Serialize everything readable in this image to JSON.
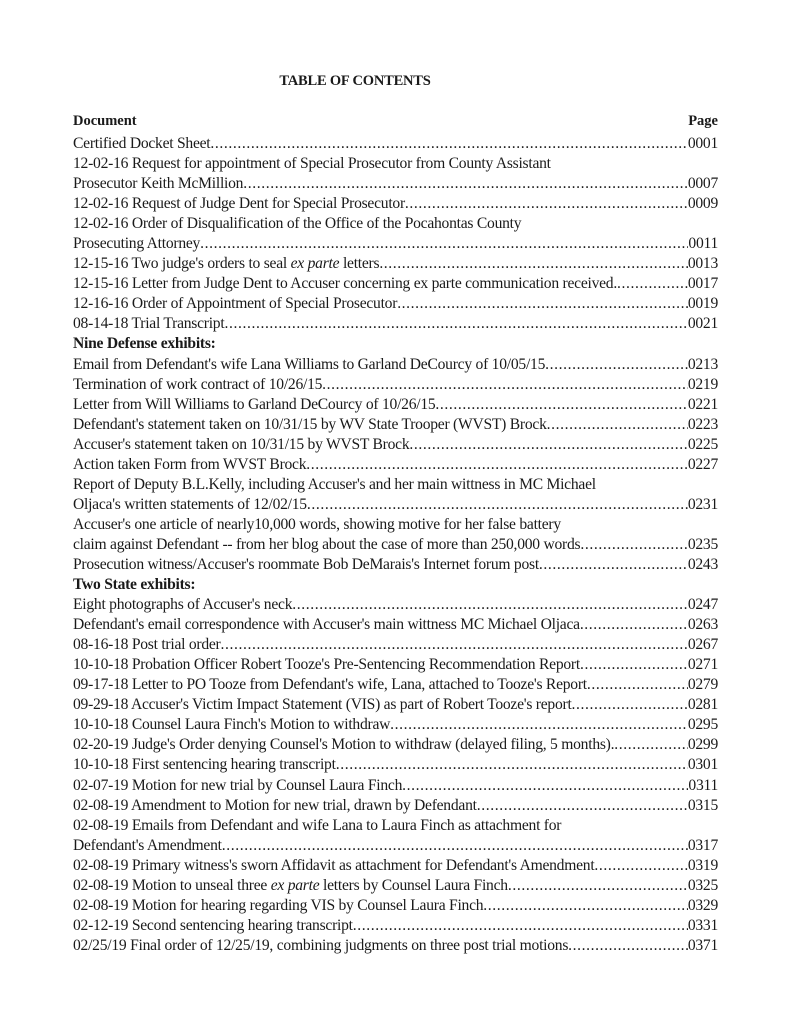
{
  "title": "TABLE OF CONTENTS",
  "header": {
    "document": "Document",
    "page": "Page"
  },
  "rows": [
    {
      "type": "entry",
      "lines": [
        "Certified Docket Sheet"
      ],
      "page": "0001"
    },
    {
      "type": "entry",
      "lines": [
        "12-02-16 Request for appointment of Special Prosecutor from County Assistant",
        "Prosecutor Keith McMillion"
      ],
      "page": "0007"
    },
    {
      "type": "entry",
      "lines": [
        "12-02-16 Request of Judge Dent for Special Prosecutor"
      ],
      "page": "0009"
    },
    {
      "type": "entry",
      "lines": [
        "12-02-16 Order of Disqualification of the Office of the Pocahontas County",
        "Prosecuting Attorney"
      ],
      "page": "0011"
    },
    {
      "type": "entry",
      "lines": [
        {
          "pre": "12-15-16  Two judge's orders to seal ",
          "em": "ex parte",
          "post": " letters"
        }
      ],
      "page": "0013"
    },
    {
      "type": "entry",
      "lines": [
        "12-15-16 Letter from Judge Dent to Accuser concerning ex parte communication received."
      ],
      "page": "0017"
    },
    {
      "type": "entry",
      "lines": [
        "12-16-16 Order of Appointment of Special Prosecutor"
      ],
      "page": "0019"
    },
    {
      "type": "entry",
      "lines": [
        "08-14-18 Trial Transcript"
      ],
      "page": "0021"
    },
    {
      "type": "heading",
      "text": "Nine Defense exhibits:"
    },
    {
      "type": "entry",
      "lines": [
        "Email from Defendant's wife Lana Williams to Garland DeCourcy of 10/05/15"
      ],
      "page": "0213"
    },
    {
      "type": "entry",
      "lines": [
        "Termination of work contract of 10/26/15"
      ],
      "page": "0219"
    },
    {
      "type": "entry",
      "lines": [
        "Letter from Will Williams to Garland DeCourcy of 10/26/15"
      ],
      "page": "0221"
    },
    {
      "type": "entry",
      "lines": [
        "Defendant's statement taken on 10/31/15 by WV State Trooper (WVST) Brock"
      ],
      "page": "0223"
    },
    {
      "type": "entry",
      "lines": [
        "Accuser's statement taken on 10/31/15 by WVST Brock"
      ],
      "page": "0225"
    },
    {
      "type": "entry",
      "lines": [
        "Action taken Form from WVST Brock"
      ],
      "page": "0227"
    },
    {
      "type": "entry",
      "lines": [
        "Report of Deputy B.L.Kelly, including Accuser's and her main wittness in MC Michael",
        "Oljaca's written statements of 12/02/15"
      ],
      "page": "0231"
    },
    {
      "type": "entry",
      "lines": [
        "Accuser's one article of nearly10,000 words, showing motive for her false battery",
        "claim against Defendant -- from her blog about the case of more than 250,000 words"
      ],
      "page": "0235"
    },
    {
      "type": "entry",
      "lines": [
        "Prosecution witness/Accuser's roommate Bob DeMarais's Internet forum post"
      ],
      "page": "0243"
    },
    {
      "type": "heading",
      "text": "Two State exhibits:"
    },
    {
      "type": "entry",
      "lines": [
        "Eight photographs of Accuser's neck"
      ],
      "page": "0247"
    },
    {
      "type": "entry",
      "lines": [
        "Defendant's email correspondence with Accuser's main wittness MC Michael Oljaca"
      ],
      "page": "0263"
    },
    {
      "type": "entry",
      "lines": [
        "08-16-18 Post trial order"
      ],
      "page": "0267"
    },
    {
      "type": "entry",
      "lines": [
        "10-10-18 Probation Officer Robert Tooze's Pre-Sentencing Recommendation Report"
      ],
      "page": "0271"
    },
    {
      "type": "entry",
      "lines": [
        "09-17-18 Letter to PO Tooze from Defendant's wife, Lana, attached to Tooze's Report"
      ],
      "page": "0279"
    },
    {
      "type": "entry",
      "lines": [
        "09-29-18 Accuser's Victim Impact Statement (VIS) as part of Robert Tooze's report"
      ],
      "page": "0281"
    },
    {
      "type": "entry",
      "lines": [
        "10-10-18 Counsel Laura Finch's Motion to withdraw"
      ],
      "page": "0295"
    },
    {
      "type": "entry",
      "lines": [
        "02-20-19 Judge's Order denying Counsel's Motion to withdraw (delayed filing, 5 months)."
      ],
      "page": "0299"
    },
    {
      "type": "entry",
      "lines": [
        "10-10-18 First sentencing hearing transcript"
      ],
      "page": "0301"
    },
    {
      "type": "entry",
      "lines": [
        "02-07-19 Motion for new trial by Counsel Laura Finch"
      ],
      "page": "0311"
    },
    {
      "type": "entry",
      "lines": [
        "02-08-19 Amendment to Motion for new trial, drawn by Defendant"
      ],
      "page": "0315"
    },
    {
      "type": "entry",
      "lines": [
        "02-08-19 Emails from Defendant and wife Lana to Laura Finch as attachment for",
        "Defendant's Amendment"
      ],
      "page": "0317"
    },
    {
      "type": "entry",
      "lines": [
        "02-08-19 Primary witness's sworn Affidavit as attachment for Defendant's Amendment"
      ],
      "page": "0319"
    },
    {
      "type": "entry",
      "lines": [
        {
          "pre": "02-08-19 Motion to unseal three ",
          "em": "ex parte",
          "post": " letters by Counsel Laura Finch"
        }
      ],
      "page": "0325"
    },
    {
      "type": "entry",
      "lines": [
        "02-08-19 Motion for hearing regarding VIS by Counsel Laura Finch"
      ],
      "page": "0329"
    },
    {
      "type": "entry",
      "lines": [
        "02-12-19 Second sentencing hearing transcript"
      ],
      "page": "0331"
    },
    {
      "type": "entry",
      "lines": [
        "02/25/19  Final order of 12/25/19, combining judgments on three post trial motions"
      ],
      "page": "0371"
    }
  ]
}
